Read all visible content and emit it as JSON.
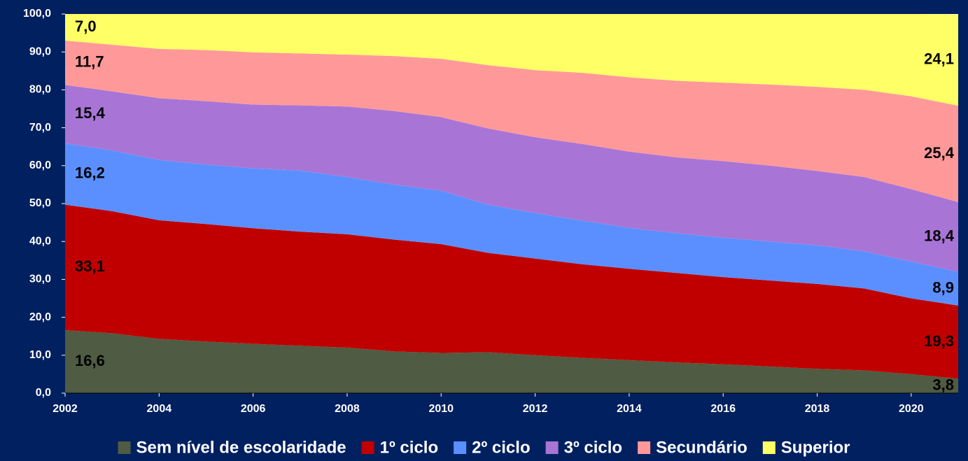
{
  "chart_data": {
    "type": "stacked_area",
    "x": [
      2002,
      2003,
      2004,
      2005,
      2006,
      2007,
      2008,
      2009,
      2010,
      2011,
      2012,
      2013,
      2014,
      2015,
      2016,
      2017,
      2018,
      2019,
      2020,
      2021
    ],
    "xlim": [
      2002,
      2021
    ],
    "xticks": [
      2002,
      2004,
      2006,
      2008,
      2010,
      2012,
      2014,
      2016,
      2018,
      2020
    ],
    "ylim": [
      0,
      100
    ],
    "yticks": [
      {
        "value": 0,
        "label": "0,0"
      },
      {
        "value": 10,
        "label": "10,0"
      },
      {
        "value": 20,
        "label": "20,0"
      },
      {
        "value": 30,
        "label": "30,0"
      },
      {
        "value": 40,
        "label": "40,0"
      },
      {
        "value": 50,
        "label": "50,0"
      },
      {
        "value": 60,
        "label": "60,0"
      },
      {
        "value": 70,
        "label": "70,0"
      },
      {
        "value": 80,
        "label": "80,0"
      },
      {
        "value": 90,
        "label": "90,0"
      },
      {
        "value": 100,
        "label": "100,0"
      }
    ],
    "legend": "bottom",
    "series": [
      {
        "name": "Sem nível de escolaridade",
        "color": "#4f5b42",
        "values": [
          16.6,
          15.8,
          14.3,
          13.6,
          13.0,
          12.5,
          12.0,
          11.0,
          10.6,
          10.8,
          10.0,
          9.3,
          8.7,
          8.1,
          7.6,
          7.0,
          6.4,
          6.0,
          5.0,
          3.8
        ],
        "value_labels": [
          "16,6",
          null,
          null,
          null,
          null,
          null,
          null,
          null,
          null,
          null,
          null,
          null,
          null,
          null,
          null,
          null,
          null,
          null,
          null,
          "3,8"
        ]
      },
      {
        "name": "1º ciclo",
        "color": "#c00000",
        "values": [
          33.1,
          32.2,
          31.3,
          31.0,
          30.5,
          30.1,
          29.9,
          29.5,
          28.7,
          26.2,
          25.5,
          24.7,
          24.1,
          23.6,
          23.0,
          22.7,
          22.4,
          21.6,
          20.0,
          19.3
        ],
        "value_labels": [
          "33,1",
          null,
          null,
          null,
          null,
          null,
          null,
          null,
          null,
          null,
          null,
          null,
          null,
          null,
          null,
          null,
          null,
          null,
          null,
          "19,3"
        ]
      },
      {
        "name": "2º ciclo",
        "color": "#5b8fff",
        "values": [
          16.2,
          16.0,
          15.9,
          15.7,
          15.8,
          16.1,
          15.1,
          14.5,
          14.1,
          12.7,
          12.0,
          11.5,
          10.8,
          10.5,
          10.4,
          10.3,
          10.2,
          9.8,
          9.7,
          8.9
        ],
        "value_labels": [
          "16,2",
          null,
          null,
          null,
          null,
          null,
          null,
          null,
          null,
          null,
          null,
          null,
          null,
          null,
          null,
          null,
          null,
          null,
          null,
          "8,9"
        ]
      },
      {
        "name": "3º ciclo",
        "color": "#a875d6",
        "values": [
          15.4,
          15.6,
          16.3,
          16.7,
          16.8,
          17.2,
          18.6,
          19.4,
          19.4,
          20.1,
          20.0,
          20.2,
          20.1,
          20.0,
          20.2,
          20.0,
          19.6,
          19.6,
          19.1,
          18.4
        ],
        "value_labels": [
          "15,4",
          null,
          null,
          null,
          null,
          null,
          null,
          null,
          null,
          null,
          null,
          null,
          null,
          null,
          null,
          null,
          null,
          null,
          null,
          "18,4"
        ]
      },
      {
        "name": "Secundário",
        "color": "#ff9999",
        "values": [
          11.7,
          12.3,
          13.0,
          13.5,
          13.8,
          13.7,
          13.7,
          14.5,
          15.4,
          16.7,
          17.7,
          18.8,
          19.6,
          20.2,
          20.7,
          21.4,
          22.2,
          23.0,
          24.5,
          25.4
        ],
        "value_labels": [
          "11,7",
          null,
          null,
          null,
          null,
          null,
          null,
          null,
          null,
          null,
          null,
          null,
          null,
          null,
          null,
          null,
          null,
          null,
          null,
          "25,4"
        ]
      },
      {
        "name": "Superior",
        "color": "#ffff66",
        "values": [
          7.0,
          8.1,
          9.2,
          9.5,
          10.1,
          10.4,
          10.7,
          11.1,
          11.8,
          13.5,
          14.8,
          15.5,
          16.7,
          17.6,
          18.1,
          18.6,
          19.2,
          20.0,
          21.7,
          24.1
        ],
        "value_labels": [
          "7,0",
          null,
          null,
          null,
          null,
          null,
          null,
          null,
          null,
          null,
          null,
          null,
          null,
          null,
          null,
          null,
          null,
          null,
          null,
          "24,1"
        ]
      }
    ]
  }
}
